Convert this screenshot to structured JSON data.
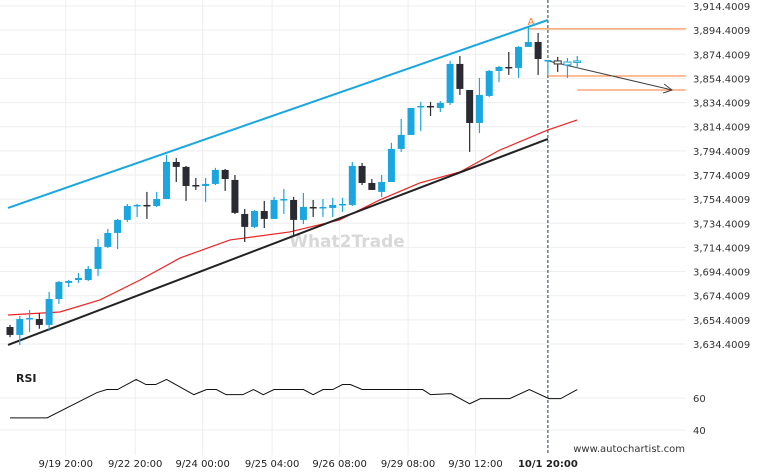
{
  "chart_data": {
    "type": "candlestick",
    "title": "",
    "watermark": "What2Trade",
    "source": "www.autochartist.com",
    "colors": {
      "bull": "#1aa6e0",
      "bear": "#2a2a33",
      "channel_upper": "#1aa6e0",
      "channel_lower": "#222222",
      "ma": "#ee2222",
      "levels": "#ff7a30",
      "grid": "#eeeeee"
    },
    "y_axis": {
      "ticks": [
        "3,914.4009",
        "3,894.4009",
        "3,874.4009",
        "3,854.4009",
        "3,834.4009",
        "3,814.4009",
        "3,794.4009",
        "3,774.4009",
        "3,754.4009",
        "3,734.4009",
        "3,714.4009",
        "3,694.4009",
        "3,674.4009",
        "3,654.4009",
        "3,634.4009"
      ],
      "tick_values": [
        3914.4009,
        3894.4009,
        3874.4009,
        3854.4009,
        3834.4009,
        3814.4009,
        3794.4009,
        3774.4009,
        3754.4009,
        3734.4009,
        3714.4009,
        3694.4009,
        3674.4009,
        3654.4009,
        3634.4009
      ],
      "range": [
        3634.4009,
        3914.4009
      ]
    },
    "x_axis": {
      "ticks": [
        {
          "label": "9/19 20:00",
          "index": 6.7
        },
        {
          "label": "9/22 20:00",
          "index": 13.8
        },
        {
          "label": "9/24 00:00",
          "index": 20.7
        },
        {
          "label": "9/25 04:00",
          "index": 27.8
        },
        {
          "label": "9/26 08:00",
          "index": 34.7
        },
        {
          "label": "9/29 08:00",
          "index": 41.7
        },
        {
          "label": "9/30 12:00",
          "index": 48.6
        },
        {
          "label": "10/1 20:00",
          "index": 56.0,
          "bold": true
        }
      ]
    },
    "candles_ohlc": [
      [
        3648.5,
        3650.2,
        3640.0,
        3641.9
      ],
      [
        3641.9,
        3657.6,
        3633.6,
        3655.1
      ],
      [
        3655.1,
        3662.6,
        3644.4,
        3656.0
      ],
      [
        3655.1,
        3660.0,
        3647.0,
        3650.2
      ],
      [
        3650.2,
        3677.5,
        3645.2,
        3671.7
      ],
      [
        3671.7,
        3686.6,
        3667.6,
        3685.8
      ],
      [
        3685.0,
        3687.4,
        3681.6,
        3686.6
      ],
      [
        3687.4,
        3693.2,
        3685.0,
        3689.1
      ],
      [
        3687.4,
        3699.0,
        3686.6,
        3696.6
      ],
      [
        3696.6,
        3721.4,
        3690.8,
        3714.8
      ],
      [
        3714.8,
        3729.7,
        3714.0,
        3726.4
      ],
      [
        3726.4,
        3738.0,
        3713.1,
        3737.2
      ],
      [
        3737.2,
        3750.4,
        3735.5,
        3748.7
      ],
      [
        3748.7,
        3750.4,
        3739.6,
        3749.6
      ],
      [
        3749.6,
        3760.4,
        3738.0,
        3748.7
      ],
      [
        3748.7,
        3760.4,
        3747.9,
        3754.5
      ],
      [
        3754.5,
        3791.0,
        3754.5,
        3785.2
      ],
      [
        3785.2,
        3788.5,
        3768.6,
        3781.1
      ],
      [
        3781.1,
        3781.9,
        3752.9,
        3765.3
      ],
      [
        3766.1,
        3771.9,
        3762.0,
        3765.3
      ],
      [
        3765.3,
        3771.9,
        3752.1,
        3767.0
      ],
      [
        3767.0,
        3780.3,
        3766.1,
        3778.6
      ],
      [
        3778.6,
        3779.4,
        3761.2,
        3771.1
      ],
      [
        3770.3,
        3774.4,
        3742.1,
        3743.0
      ],
      [
        3742.1,
        3746.3,
        3718.9,
        3731.4
      ],
      [
        3731.4,
        3745.4,
        3730.5,
        3744.6
      ],
      [
        3744.6,
        3752.9,
        3730.5,
        3738.0
      ],
      [
        3738.0,
        3756.2,
        3738.0,
        3753.7
      ],
      [
        3753.7,
        3762.8,
        3742.1,
        3754.5
      ],
      [
        3753.7,
        3756.2,
        3723.1,
        3737.2
      ],
      [
        3737.2,
        3759.5,
        3733.8,
        3747.9
      ],
      [
        3747.9,
        3753.7,
        3739.6,
        3747.1
      ],
      [
        3747.1,
        3754.5,
        3739.6,
        3747.9
      ],
      [
        3747.1,
        3755.4,
        3739.6,
        3749.6
      ],
      [
        3749.6,
        3755.4,
        3743.8,
        3750.4
      ],
      [
        3749.6,
        3785.2,
        3748.7,
        3781.9
      ],
      [
        3781.9,
        3784.4,
        3766.1,
        3767.8
      ],
      [
        3767.8,
        3771.1,
        3762.0,
        3762.0
      ],
      [
        3760.4,
        3774.4,
        3756.2,
        3768.6
      ],
      [
        3768.6,
        3801.0,
        3768.6,
        3796.0
      ],
      [
        3796.0,
        3820.8,
        3793.5,
        3807.6
      ],
      [
        3807.6,
        3829.9,
        3807.6,
        3829.9
      ],
      [
        3830.8,
        3834.9,
        3810.9,
        3831.6
      ],
      [
        3831.6,
        3834.9,
        3823.3,
        3830.8
      ],
      [
        3829.9,
        3835.7,
        3826.6,
        3834.1
      ],
      [
        3834.1,
        3868.9,
        3832.4,
        3866.4
      ],
      [
        3866.4,
        3873.0,
        3840.7,
        3845.7
      ],
      [
        3844.8,
        3844.8,
        3793.5,
        3817.5
      ],
      [
        3817.5,
        3854.8,
        3809.2,
        3840.7
      ],
      [
        3839.9,
        3861.4,
        3839.1,
        3860.6
      ],
      [
        3860.6,
        3864.7,
        3851.5,
        3863.9
      ],
      [
        3863.9,
        3876.3,
        3857.3,
        3863.1
      ],
      [
        3863.1,
        3881.3,
        3854.8,
        3880.5
      ],
      [
        3880.5,
        3897.0,
        3880.5,
        3884.6
      ],
      [
        3884.6,
        3892.1,
        3857.3,
        3870.5
      ],
      [
        3869.7,
        3869.7,
        3857.3,
        3869.7
      ],
      [
        3868.9,
        3872.2,
        3859.8,
        3866.4
      ],
      [
        3865.6,
        3871.4,
        3854.8,
        3868.0
      ],
      [
        3868.9,
        3873.0,
        3863.1,
        3868.9
      ]
    ],
    "hollow_from_index": 57,
    "pattern": {
      "label": "A",
      "upper_line": [
        [
          0.8,
          3747.1
        ],
        [
          56.0,
          3902.8
        ]
      ],
      "lower_line": [
        [
          0.8,
          3633.6
        ],
        [
          56.0,
          3804.3
        ]
      ],
      "forecast_arrow": [
        [
          56.0,
          3868.9
        ],
        [
          68.7,
          3844.8
        ]
      ],
      "levels": [
        {
          "from": 54,
          "to": 70.1,
          "price": 3895.4
        },
        {
          "from": 56,
          "to": 70.1,
          "price": 3856.4
        },
        {
          "from": 59,
          "to": 70.1,
          "price": 3844.8
        }
      ],
      "current_marker_index": 56.0
    },
    "moving_average": [
      [
        0.8,
        3658.4
      ],
      [
        6.1,
        3660.9
      ],
      [
        10.2,
        3670.9
      ],
      [
        14.3,
        3687.4
      ],
      [
        18.4,
        3705.7
      ],
      [
        23.5,
        3720.6
      ],
      [
        29.6,
        3727.2
      ],
      [
        34.7,
        3737.2
      ],
      [
        38.8,
        3753.7
      ],
      [
        42.9,
        3767.8
      ],
      [
        47,
        3776.9
      ],
      [
        51.1,
        3795.1
      ],
      [
        56,
        3811.7
      ],
      [
        59,
        3820.0
      ]
    ],
    "rsi": {
      "label": "RSI",
      "ticks": [
        60,
        40
      ],
      "points": [
        [
          1,
          47.6
        ],
        [
          4.8,
          47.6
        ],
        [
          9.9,
          63.4
        ],
        [
          10.9,
          65.3
        ],
        [
          12,
          65.3
        ],
        [
          13.9,
          71.6
        ],
        [
          14.9,
          68.4
        ],
        [
          15.9,
          68.4
        ],
        [
          17,
          71.6
        ],
        [
          19.8,
          62.1
        ],
        [
          21.1,
          65.3
        ],
        [
          22.1,
          65.3
        ],
        [
          23.1,
          62.1
        ],
        [
          24.8,
          62.1
        ],
        [
          25.9,
          65.3
        ],
        [
          26.9,
          62.1
        ],
        [
          28,
          65.3
        ],
        [
          31,
          65.3
        ],
        [
          32,
          62.1
        ],
        [
          33,
          65.3
        ],
        [
          34,
          65.3
        ],
        [
          35,
          68.4
        ],
        [
          35.8,
          68.4
        ],
        [
          37,
          65.3
        ],
        [
          43.2,
          65.3
        ],
        [
          44,
          62.1
        ],
        [
          46.1,
          62.7
        ],
        [
          48,
          56.4
        ],
        [
          49.1,
          59.6
        ],
        [
          52.1,
          59.6
        ],
        [
          54.1,
          65.3
        ],
        [
          56.1,
          59.6
        ],
        [
          57.3,
          59.6
        ],
        [
          59,
          65.3
        ]
      ]
    }
  }
}
